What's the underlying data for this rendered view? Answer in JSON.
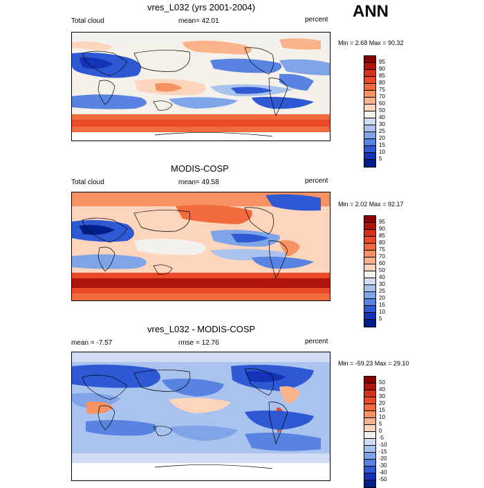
{
  "season": "ANN",
  "units": "percent",
  "panels": [
    {
      "title": "vres_L032 (yrs 2001-2004)",
      "left_label": "Total cloud",
      "center_label": "mean=  42.01",
      "minmax": "Min =   2.68 Max =  90.32",
      "cbar_levels": [
        "95",
        "90",
        "85",
        "80",
        "75",
        "70",
        "60",
        "50",
        "40",
        "30",
        "25",
        "20",
        "15",
        "10",
        "5"
      ]
    },
    {
      "title": "MODIS-COSP",
      "left_label": "Total cloud",
      "center_label": "mean=  49.58",
      "minmax": "Min =   2.02 Max =  92.17",
      "cbar_levels": [
        "95",
        "90",
        "85",
        "80",
        "75",
        "70",
        "60",
        "50",
        "40",
        "30",
        "25",
        "20",
        "15",
        "10",
        "5"
      ]
    },
    {
      "title": "vres_L032 - MODIS-COSP",
      "left_label": "mean =  -7.57",
      "center_label": "rmse =  12.76",
      "minmax": "Min = -59.23 Max =  29.10",
      "cbar_levels": [
        "50",
        "40",
        "30",
        "20",
        "15",
        "10",
        "5",
        "0",
        "-5",
        "-10",
        "-15",
        "-20",
        "-30",
        "-40",
        "-50"
      ]
    }
  ],
  "colors": {
    "abs_scale": [
      "#8b0000",
      "#b0150c",
      "#d7301f",
      "#ea4a28",
      "#f26b3d",
      "#f79262",
      "#fab38b",
      "#fdd5bc",
      "#f3f1ee",
      "#cfdcf3",
      "#a9c3ee",
      "#7fa4e8",
      "#5883e0",
      "#2f59d3",
      "#1433b8",
      "#001f8a"
    ],
    "diff_scale": [
      "#8b0000",
      "#b0150c",
      "#d7301f",
      "#ea4a28",
      "#f26b3d",
      "#f79262",
      "#fab38b",
      "#fdd5bc",
      "#f3f1ee",
      "#cfdcf3",
      "#a9c3ee",
      "#7fa4e8",
      "#5883e0",
      "#2f59d3",
      "#1433b8",
      "#001f8a"
    ]
  }
}
